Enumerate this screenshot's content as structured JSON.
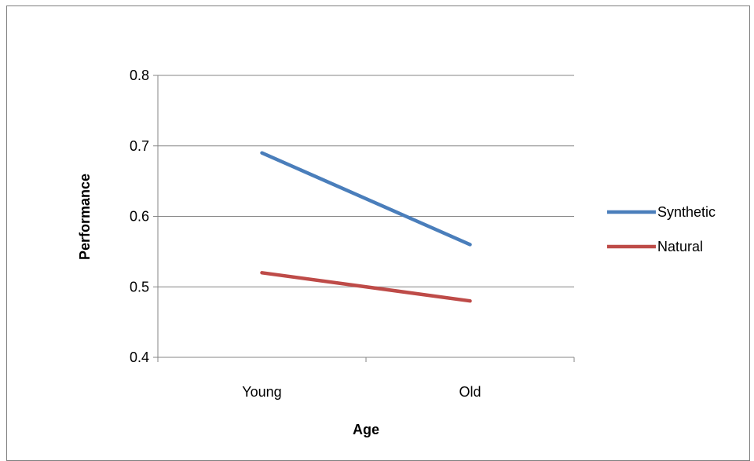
{
  "chart_data": {
    "type": "line",
    "categories": [
      "Young",
      "Old"
    ],
    "series": [
      {
        "name": "Synthetic",
        "values": [
          0.69,
          0.56
        ],
        "color": "#4a7ebb"
      },
      {
        "name": "Natural",
        "values": [
          0.52,
          0.48
        ],
        "color": "#be4b48"
      }
    ],
    "xlabel": "Age",
    "ylabel": "Performance",
    "ylim": [
      0.4,
      0.8
    ],
    "yticks": [
      "0.4",
      "0.5",
      "0.6",
      "0.7",
      "0.8"
    ],
    "grid": true,
    "legend_position": "right"
  }
}
